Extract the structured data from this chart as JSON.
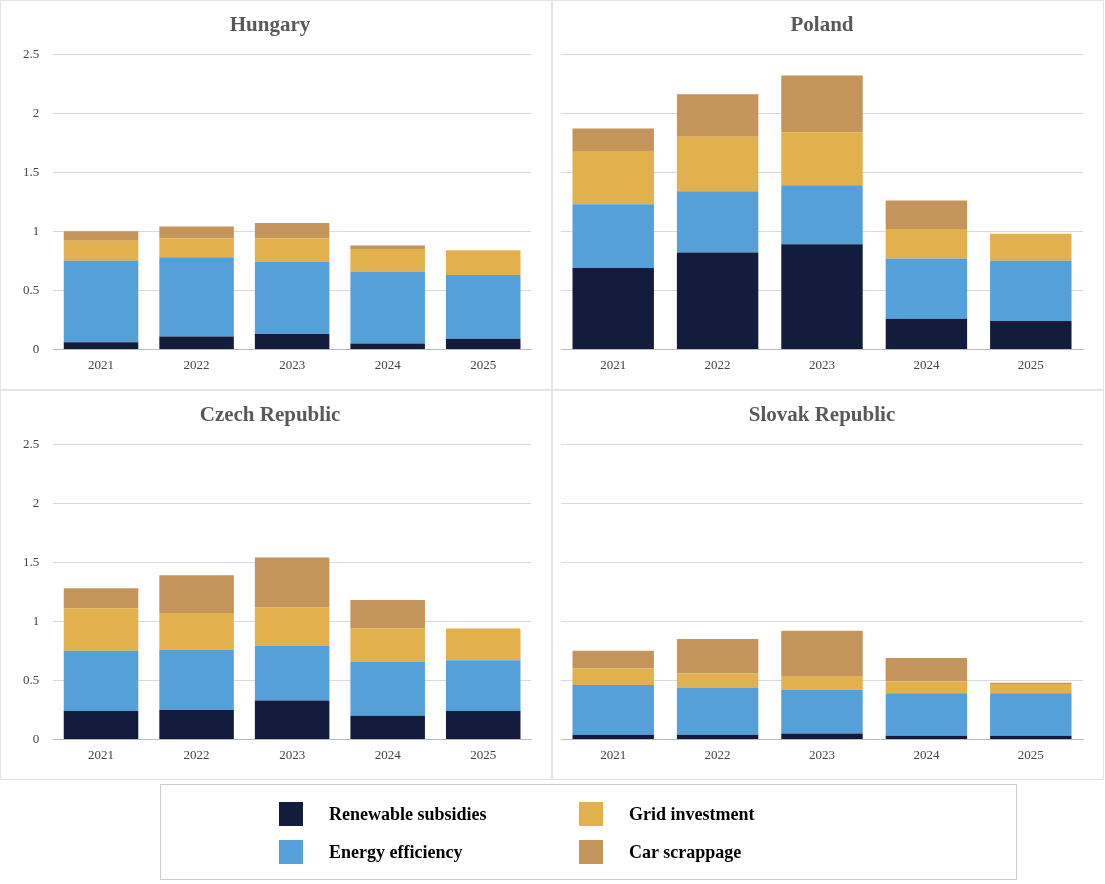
{
  "chart_data": [
    {
      "type": "bar",
      "title": "Hungary",
      "stacked": true,
      "categories": [
        "2021",
        "2022",
        "2023",
        "2024",
        "2025"
      ],
      "ylim": [
        0,
        2.5
      ],
      "yticks": [
        0,
        0.5,
        1,
        1.5,
        2,
        2.5
      ],
      "grid": "y",
      "legend": "bottom",
      "series": [
        {
          "name": "Renewable subsidies",
          "color": "#141c3e",
          "values": [
            0.06,
            0.11,
            0.13,
            0.05,
            0.09
          ]
        },
        {
          "name": "Energy efficiency",
          "color": "#55a0d8",
          "values": [
            0.69,
            0.67,
            0.61,
            0.61,
            0.54
          ]
        },
        {
          "name": "Grid investment",
          "color": "#e2b04c",
          "values": [
            0.17,
            0.16,
            0.2,
            0.19,
            0.21
          ]
        },
        {
          "name": "Car scrappage",
          "color": "#c4955a",
          "values": [
            0.08,
            0.1,
            0.13,
            0.03,
            0
          ]
        }
      ]
    },
    {
      "type": "bar",
      "title": "Poland",
      "stacked": true,
      "categories": [
        "2021",
        "2022",
        "2023",
        "2024",
        "2025"
      ],
      "ylim": [
        0,
        2.5
      ],
      "yticks": [
        0,
        0.5,
        1,
        1.5,
        2,
        2.5
      ],
      "grid": "y",
      "tick_labels": "x",
      "series": [
        {
          "color": "#141c3e",
          "values": [
            0.69,
            0.82,
            0.89,
            0.26,
            0.24
          ]
        },
        {
          "color": "#55a0d8",
          "values": [
            0.54,
            0.52,
            0.5,
            0.51,
            0.51
          ]
        },
        {
          "color": "#e2b04c",
          "values": [
            0.45,
            0.46,
            0.45,
            0.25,
            0.23
          ]
        },
        {
          "color": "#c4955a",
          "values": [
            0.19,
            0.36,
            0.48,
            0.24,
            0
          ]
        }
      ]
    },
    {
      "type": "bar",
      "title": "Czech Republic",
      "stacked": true,
      "categories": [
        "2021",
        "2022",
        "2023",
        "2024",
        "2025"
      ],
      "ylim": [
        0,
        2.5
      ],
      "yticks": [
        0,
        0.5,
        1,
        1.5,
        2,
        2.5
      ],
      "grid": "y",
      "series": [
        {
          "color": "#141c3e",
          "values": [
            0.24,
            0.25,
            0.33,
            0.2,
            0.24
          ]
        },
        {
          "color": "#55a0d8",
          "values": [
            0.51,
            0.51,
            0.46,
            0.46,
            0.43
          ]
        },
        {
          "color": "#e2b04c",
          "values": [
            0.36,
            0.31,
            0.33,
            0.28,
            0.27
          ]
        },
        {
          "color": "#c4955a",
          "values": [
            0.17,
            0.32,
            0.42,
            0.24,
            0
          ]
        }
      ]
    },
    {
      "type": "bar",
      "title": "Slovak Republic",
      "stacked": true,
      "categories": [
        "2021",
        "2022",
        "2023",
        "2024",
        "2025"
      ],
      "ylim": [
        0,
        2.5
      ],
      "yticks": [
        0,
        0.5,
        1,
        1.5,
        2,
        2.5
      ],
      "grid": "y",
      "tick_labels": "x",
      "series": [
        {
          "color": "#141c3e",
          "values": [
            0.04,
            0.04,
            0.05,
            0.03,
            0.03
          ]
        },
        {
          "color": "#55a0d8",
          "values": [
            0.42,
            0.4,
            0.37,
            0.36,
            0.36
          ]
        },
        {
          "color": "#e2b04c",
          "values": [
            0.14,
            0.12,
            0.11,
            0.1,
            0.08
          ]
        },
        {
          "color": "#c4955a",
          "values": [
            0.15,
            0.29,
            0.39,
            0.2,
            0.01
          ]
        }
      ]
    }
  ]
}
